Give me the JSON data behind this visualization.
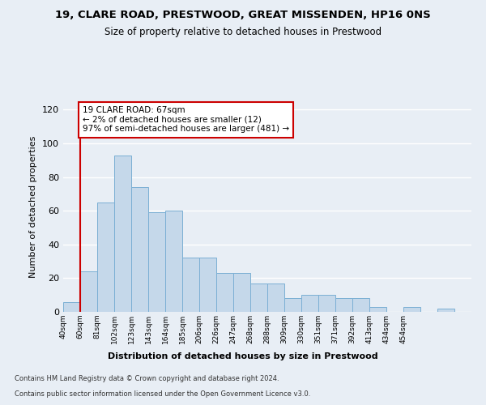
{
  "title1": "19, CLARE ROAD, PRESTWOOD, GREAT MISSENDEN, HP16 0NS",
  "title2": "Size of property relative to detached houses in Prestwood",
  "xlabel": "Distribution of detached houses by size in Prestwood",
  "ylabel": "Number of detached properties",
  "bar_values": [
    6,
    24,
    65,
    93,
    74,
    59,
    60,
    32,
    32,
    23,
    23,
    17,
    17,
    8,
    10,
    10,
    8,
    8,
    3,
    0,
    3,
    0,
    2,
    0
  ],
  "x_labels": [
    "40sqm",
    "60sqm",
    "81sqm",
    "102sqm",
    "123sqm",
    "143sqm",
    "164sqm",
    "185sqm",
    "206sqm",
    "226sqm",
    "247sqm",
    "268sqm",
    "288sqm",
    "309sqm",
    "330sqm",
    "351sqm",
    "371sqm",
    "392sqm",
    "413sqm",
    "434sqm",
    "454sqm"
  ],
  "bar_color": "#c5d8ea",
  "bar_edge_color": "#7bafd4",
  "vline_x": 1.0,
  "vline_color": "#cc0000",
  "annotation_text": "19 CLARE ROAD: 67sqm\n← 2% of detached houses are smaller (12)\n97% of semi-detached houses are larger (481) →",
  "annotation_box_color": "#ffffff",
  "annotation_box_edge": "#cc0000",
  "ylim": [
    0,
    125
  ],
  "yticks": [
    0,
    20,
    40,
    60,
    80,
    100,
    120
  ],
  "footer1": "Contains HM Land Registry data © Crown copyright and database right 2024.",
  "footer2": "Contains public sector information licensed under the Open Government Licence v3.0.",
  "background_color": "#e8eef5",
  "plot_bg_color": "#e8eef5"
}
